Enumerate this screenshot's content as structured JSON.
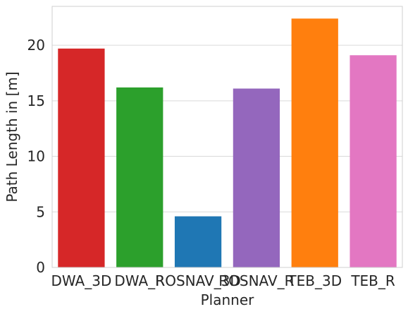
{
  "chart_data": {
    "type": "bar",
    "title": "",
    "xlabel": "Planner",
    "ylabel": "Path Length in [m]",
    "categories": [
      "DWA_3D",
      "DWA_R",
      "ROSNAV_3D",
      "ROSNAV_R",
      "TEB_3D",
      "TEB_R"
    ],
    "values": [
      19.7,
      16.2,
      4.6,
      16.1,
      22.4,
      19.1
    ],
    "colors": [
      "#d62728",
      "#2ca02c",
      "#1f77b4",
      "#9467bd",
      "#ff7f0e",
      "#e377c2"
    ],
    "ylim": [
      0,
      23.5
    ],
    "yticks": [
      0,
      5,
      10,
      15,
      20
    ],
    "grid": true
  }
}
